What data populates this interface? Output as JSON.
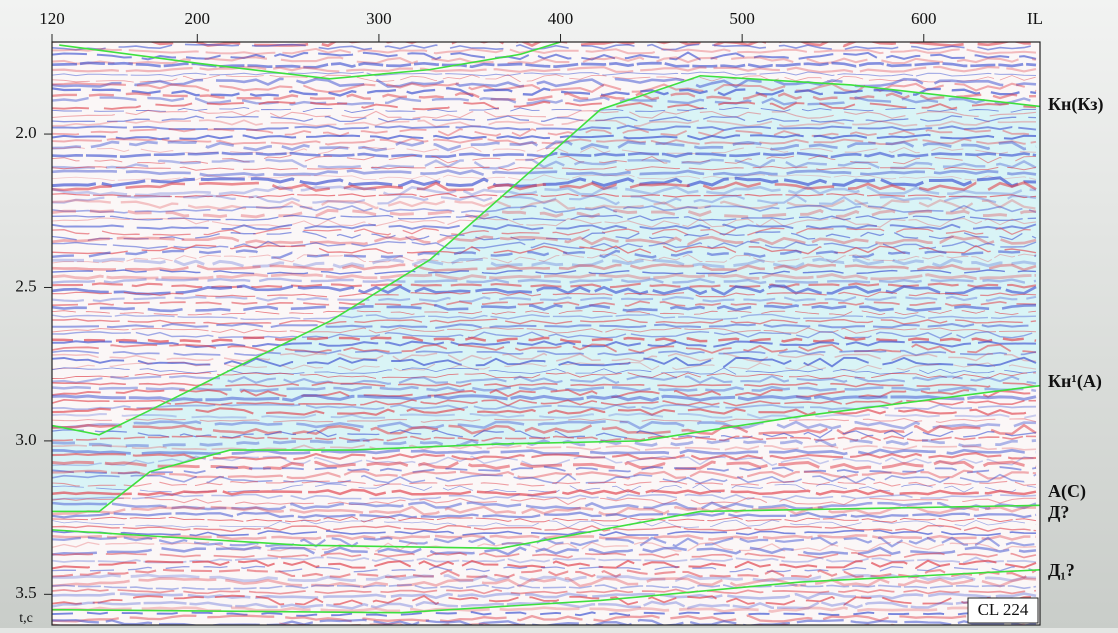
{
  "chart_data": {
    "type": "seismic",
    "xlabel": "IL",
    "ylabel": "t,c",
    "xlim": [
      120,
      664
    ],
    "xticks": [
      120,
      200,
      300,
      400,
      500,
      600
    ],
    "ylim": [
      1.7,
      3.6
    ],
    "yticks": [
      {
        "value": 2,
        "label": "2.0"
      },
      {
        "value": 2.5,
        "label": "2.5"
      },
      {
        "value": 3,
        "label": "3.0"
      },
      {
        "value": 3.5,
        "label": "3.5"
      }
    ],
    "series": [
      {
        "color": "#3ee03e",
        "x": [
          124,
          201,
          273,
          328,
          378,
          400
        ],
        "values": [
          1.71,
          1.77,
          1.82,
          1.79,
          1.74,
          1.7
        ]
      },
      {
        "color": "#3ee03e",
        "x": [
          120,
          146,
          174,
          218,
          273,
          328,
          378,
          422,
          477,
          560,
          664
        ],
        "values": [
          2.95,
          2.98,
          2.9,
          2.77,
          2.61,
          2.41,
          2.15,
          1.92,
          1.81,
          1.84,
          1.91
        ]
      },
      {
        "color": "#3ee03e",
        "x": [
          120,
          146,
          174,
          218,
          284,
          367,
          444,
          532,
          664
        ],
        "values": [
          3.23,
          3.23,
          3.1,
          3.03,
          3.03,
          3.01,
          3.0,
          2.92,
          2.82
        ]
      },
      {
        "color": "#3ee03e",
        "x": [
          120,
          257,
          367,
          477,
          664
        ],
        "values": [
          3.29,
          3.34,
          3.35,
          3.23,
          3.21
        ]
      },
      {
        "color": "#3ee03e",
        "x": [
          120,
          312,
          422,
          532,
          664
        ],
        "values": [
          3.55,
          3.56,
          3.52,
          3.46,
          3.42
        ]
      }
    ],
    "annotations": [
      "Кн(Кз)",
      "Кн¹(А)",
      "А(С)",
      "Д?",
      "Д₁?"
    ],
    "profile_label": "CL 224"
  }
}
